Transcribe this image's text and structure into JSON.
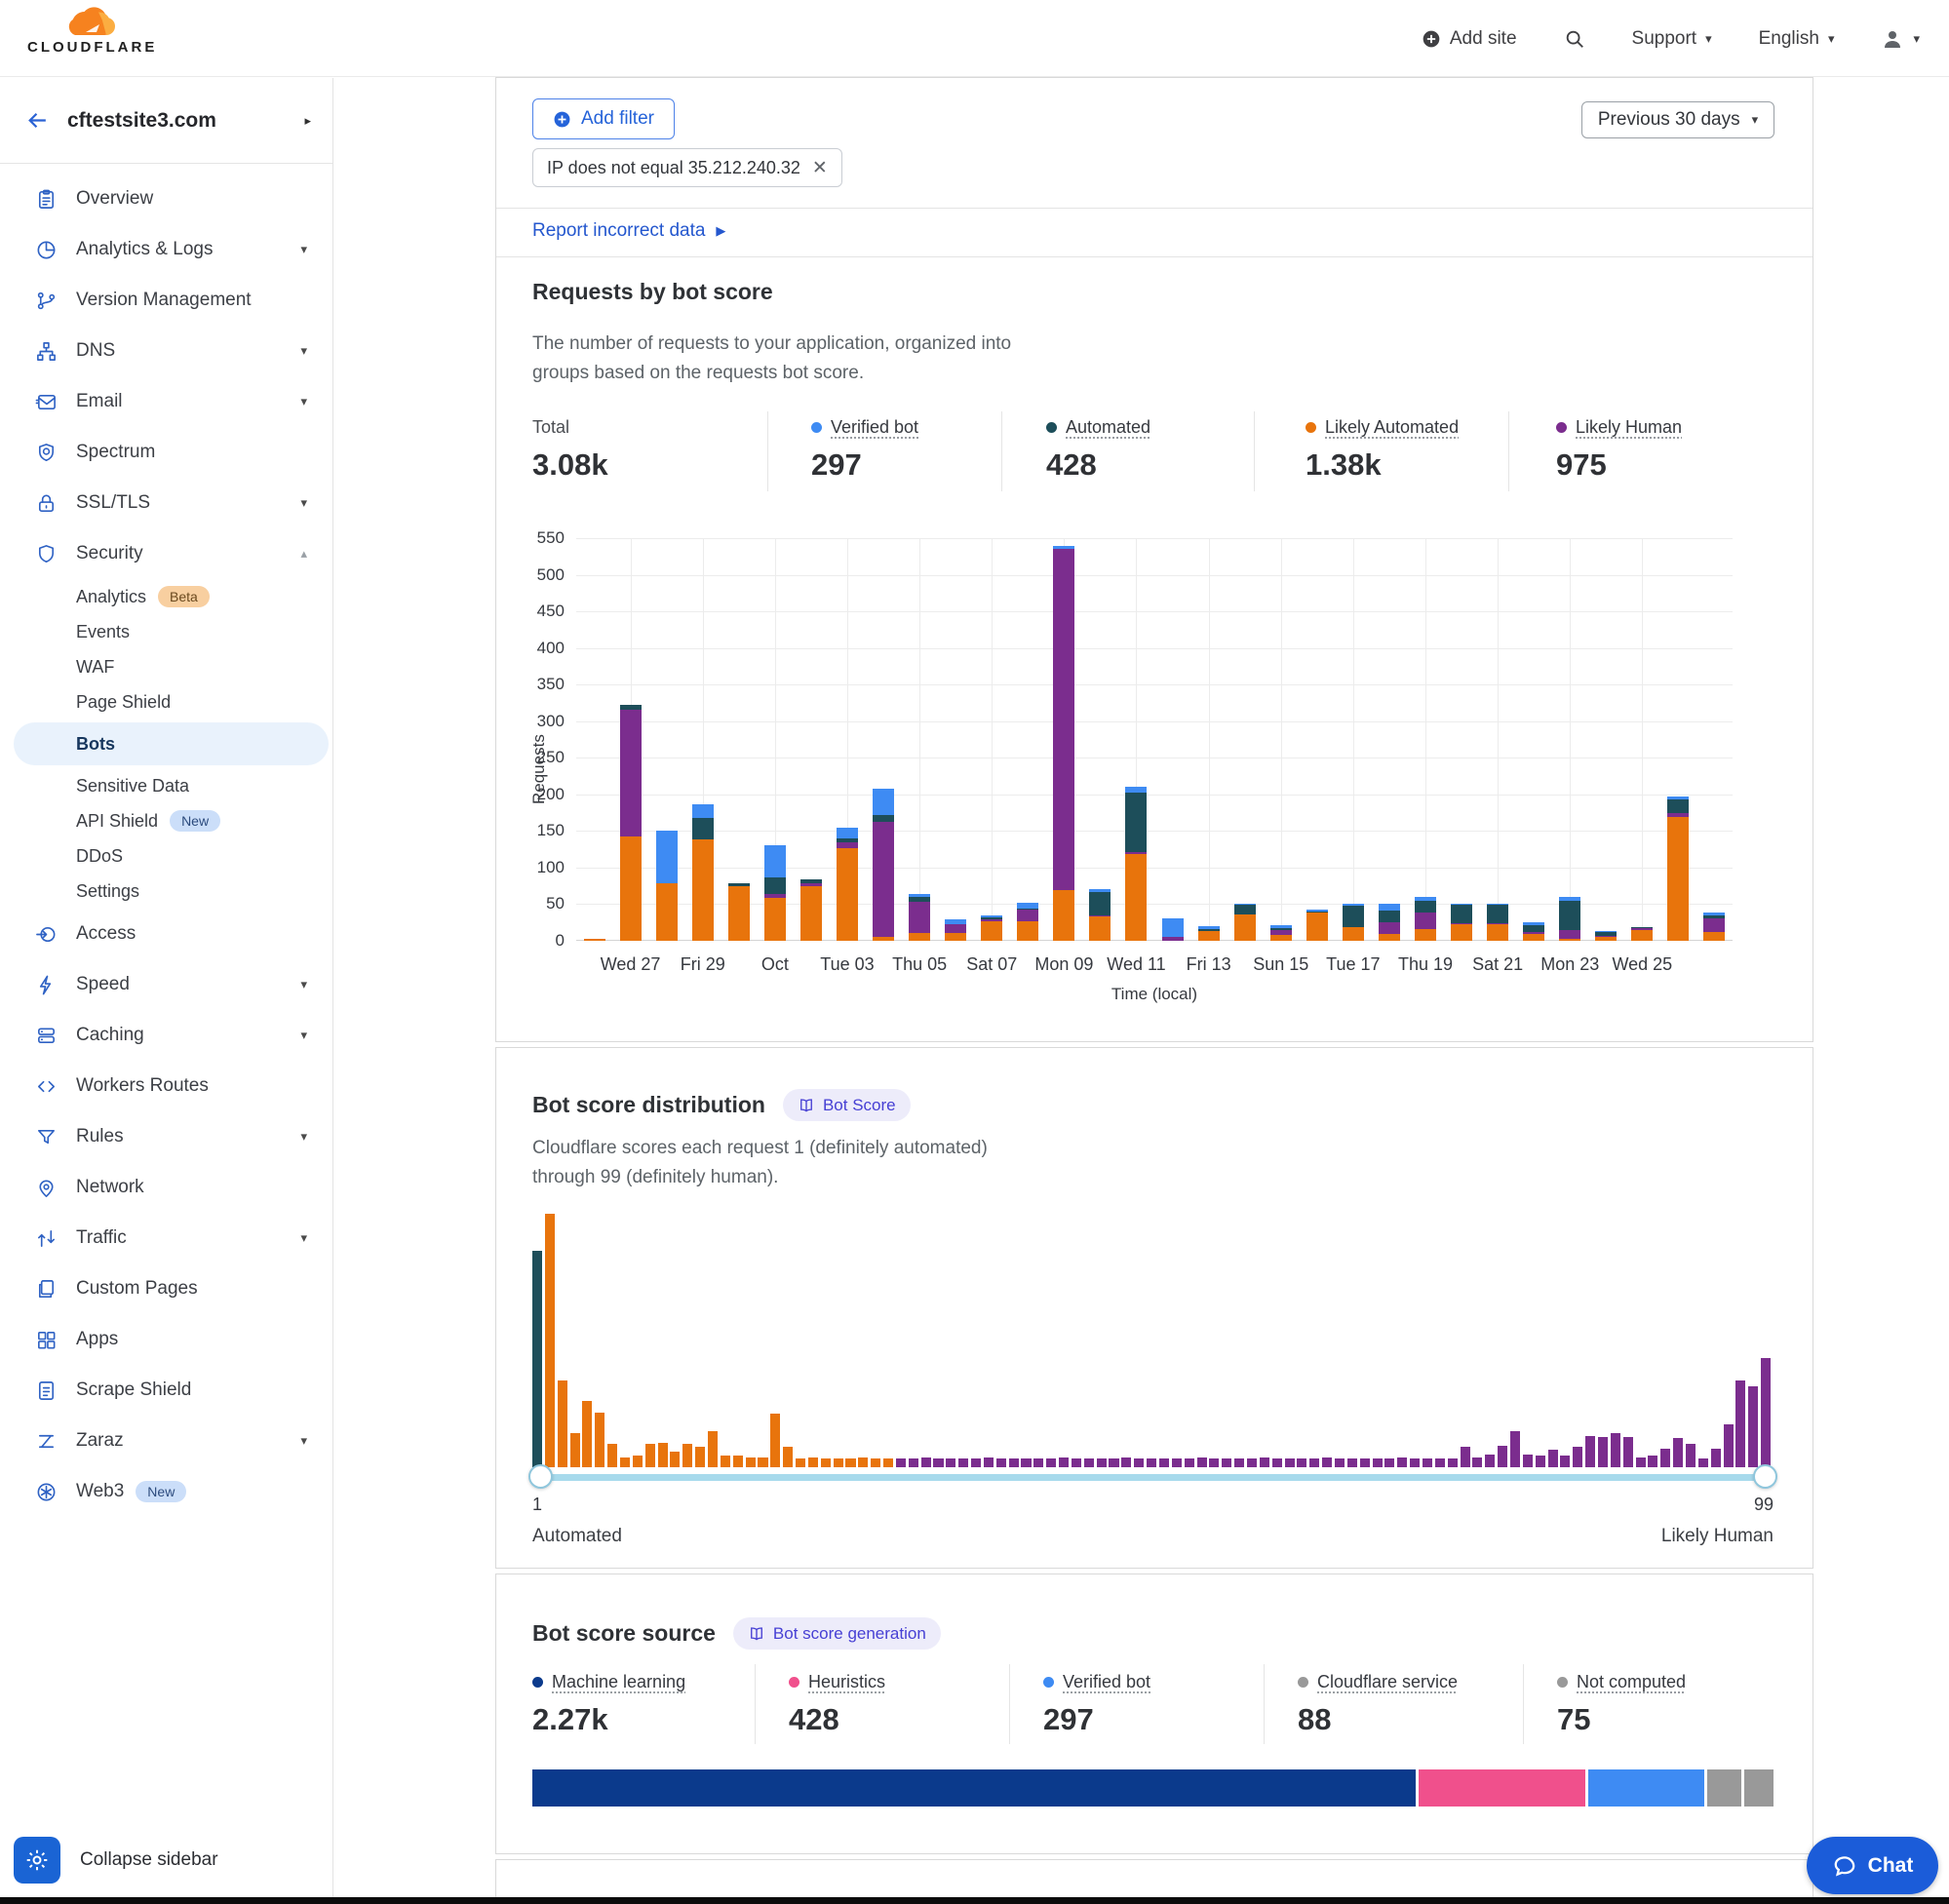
{
  "header": {
    "logo_text": "CLOUDFLARE",
    "add_site": "Add site",
    "support": "Support",
    "language": "English"
  },
  "sidebar": {
    "site": "cftestsite3.com",
    "collapse_label": "Collapse sidebar",
    "items": [
      {
        "label": "Overview",
        "icon": "overview"
      },
      {
        "label": "Analytics & Logs",
        "icon": "analytics",
        "expandable": true
      },
      {
        "label": "Version Management",
        "icon": "version"
      },
      {
        "label": "DNS",
        "icon": "dns",
        "expandable": true
      },
      {
        "label": "Email",
        "icon": "email",
        "expandable": true
      },
      {
        "label": "Spectrum",
        "icon": "spectrum"
      },
      {
        "label": "SSL/TLS",
        "icon": "ssl",
        "expandable": true
      },
      {
        "label": "Security",
        "icon": "security",
        "expanded": true,
        "subitems": [
          {
            "label": "Analytics",
            "badge": "Beta",
            "badge_style": "beta"
          },
          {
            "label": "Events"
          },
          {
            "label": "WAF"
          },
          {
            "label": "Page Shield"
          },
          {
            "label": "Bots",
            "active": true
          },
          {
            "label": "Sensitive Data"
          },
          {
            "label": "API Shield",
            "badge": "New",
            "badge_style": "new"
          },
          {
            "label": "DDoS"
          },
          {
            "label": "Settings"
          }
        ]
      },
      {
        "label": "Access",
        "icon": "access"
      },
      {
        "label": "Speed",
        "icon": "speed",
        "expandable": true
      },
      {
        "label": "Caching",
        "icon": "caching",
        "expandable": true
      },
      {
        "label": "Workers Routes",
        "icon": "workers"
      },
      {
        "label": "Rules",
        "icon": "rules",
        "expandable": true
      },
      {
        "label": "Network",
        "icon": "network"
      },
      {
        "label": "Traffic",
        "icon": "traffic",
        "expandable": true
      },
      {
        "label": "Custom Pages",
        "icon": "custom-pages"
      },
      {
        "label": "Apps",
        "icon": "apps"
      },
      {
        "label": "Scrape Shield",
        "icon": "scrape-shield"
      },
      {
        "label": "Zaraz",
        "icon": "zaraz",
        "expandable": true
      },
      {
        "label": "Web3",
        "icon": "web3",
        "badge": "New",
        "badge_style": "new"
      }
    ]
  },
  "toolbar": {
    "add_filter": "Add filter",
    "filter_chip": "IP does not equal 35.212.240.32",
    "time_range": "Previous 30 days",
    "report_link": "Report incorrect data"
  },
  "requests_section": {
    "title": "Requests by bot score",
    "description_line1": "The number of requests to your application, organized into",
    "description_line2": "groups based on the requests bot score.",
    "stats": [
      {
        "label": "Total",
        "value": "3.08k",
        "color": null
      },
      {
        "label": "Verified bot",
        "value": "297",
        "color": "#3E8BF3"
      },
      {
        "label": "Automated",
        "value": "428",
        "color": "#1D4E5A"
      },
      {
        "label": "Likely Automated",
        "value": "1.38k",
        "color": "#E8740C"
      },
      {
        "label": "Likely Human",
        "value": "975",
        "color": "#7B2D8E"
      }
    ],
    "chart_data": {
      "type": "bar",
      "stacked": true,
      "title": "Requests by bot score",
      "xlabel": "Time (local)",
      "ylabel": "Requests",
      "ylim": [
        0,
        550
      ],
      "ytick_step": 50,
      "grid": true,
      "x_label_indices": [
        1,
        3,
        5,
        7,
        9,
        11,
        13,
        15,
        17,
        19,
        21,
        23,
        25,
        27,
        29
      ],
      "x_labels": [
        "Wed 27",
        "Fri 29",
        "Oct",
        "Tue 03",
        "Thu 05",
        "Sat 07",
        "Mon 09",
        "Wed 11",
        "Fri 13",
        "Sun 15",
        "Tue 17",
        "Thu 19",
        "Sat 21",
        "Mon 23",
        "Wed 25"
      ],
      "series": [
        {
          "name": "Likely Automated",
          "color": "#E8740C",
          "values": [
            3,
            143,
            78,
            139,
            75,
            59,
            75,
            127,
            5,
            11,
            11,
            27,
            26,
            69,
            33,
            118,
            0,
            13,
            36,
            8,
            38,
            18,
            10,
            16,
            22,
            22,
            10,
            3,
            5,
            15,
            169,
            12
          ]
        },
        {
          "name": "Likely Human",
          "color": "#7B2D8E",
          "values": [
            0,
            172,
            0,
            0,
            0,
            5,
            4,
            8,
            158,
            42,
            12,
            1,
            16,
            466,
            2,
            3,
            5,
            0,
            0,
            7,
            0,
            0,
            15,
            22,
            2,
            2,
            2,
            12,
            2,
            2,
            5,
            18
          ]
        },
        {
          "name": "Automated",
          "color": "#1D4E5A",
          "values": [
            0,
            7,
            0,
            29,
            4,
            23,
            5,
            5,
            9,
            7,
            0,
            3,
            2,
            0,
            32,
            82,
            0,
            3,
            13,
            2,
            1,
            30,
            17,
            17,
            25,
            25,
            10,
            40,
            5,
            1,
            19,
            5
          ]
        },
        {
          "name": "Verified bot",
          "color": "#3E8BF3",
          "values": [
            0,
            0,
            73,
            19,
            0,
            44,
            0,
            14,
            36,
            4,
            7,
            2,
            8,
            5,
            4,
            8,
            25,
            4,
            1,
            4,
            3,
            3,
            9,
            5,
            1,
            1,
            3,
            5,
            2,
            0,
            4,
            3
          ]
        }
      ]
    }
  },
  "distribution_section": {
    "title": "Bot score distribution",
    "badge": "Bot Score",
    "description_line1": "Cloudflare scores each request 1 (definitely automated)",
    "description_line2": "through 99 (definitely human).",
    "slider_min": "1",
    "slider_max": "99",
    "left_label": "Automated",
    "right_label": "Likely Human",
    "chart_data": {
      "type": "bar",
      "x_range": [
        1,
        99
      ],
      "color_rules": {
        "score_1": "#1D4E5A",
        "scores_2_29": "#E8740C",
        "scores_30_99": "#7B2D8E"
      },
      "values": [
        75,
        88,
        30,
        12,
        23,
        19,
        8,
        3.5,
        4,
        8,
        8.5,
        5.5,
        8,
        7,
        12.5,
        4,
        4,
        3.5,
        3.5,
        18.5,
        7,
        3,
        3.5,
        3,
        3,
        3,
        3.5,
        3,
        3,
        3,
        3,
        3.5,
        3,
        3,
        3,
        3,
        3.5,
        3,
        3,
        3,
        3,
        3,
        3.5,
        3,
        3,
        3,
        3,
        3.5,
        3,
        3,
        3,
        3,
        3,
        3.5,
        3,
        3,
        3,
        3,
        3.5,
        3,
        3,
        3,
        3,
        3.5,
        3,
        3,
        3,
        3,
        3,
        3.5,
        3,
        3,
        3,
        3,
        7,
        3.5,
        4.5,
        7.5,
        12.5,
        4.5,
        4,
        6,
        4,
        7,
        11,
        10.5,
        12,
        10.5,
        3.5,
        4,
        6.5,
        10,
        8,
        3,
        6.5,
        15,
        30,
        28,
        38
      ]
    }
  },
  "source_section": {
    "title": "Bot score source",
    "badge": "Bot score generation",
    "stats": [
      {
        "label": "Machine learning",
        "value": "2.27k",
        "num": 2270,
        "color": "#0B3A8C"
      },
      {
        "label": "Heuristics",
        "value": "428",
        "num": 428,
        "color": "#F0508C"
      },
      {
        "label": "Verified bot",
        "value": "297",
        "num": 297,
        "color": "#3E8BF3"
      },
      {
        "label": "Cloudflare service",
        "value": "88",
        "num": 88,
        "color": "#999999"
      },
      {
        "label": "Not computed",
        "value": "75",
        "num": 75,
        "color": "#999999"
      }
    ]
  },
  "chat_label": "Chat"
}
